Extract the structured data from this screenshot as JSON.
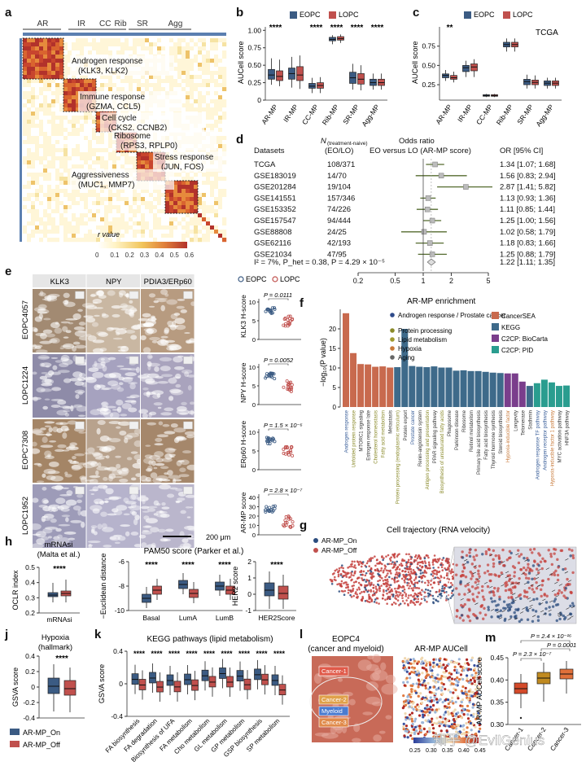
{
  "panel_letters": [
    "a",
    "b",
    "c",
    "d",
    "e",
    "f",
    "g",
    "h",
    "i",
    "j",
    "k",
    "l",
    "m"
  ],
  "colors": {
    "eopc": "#3b5b83",
    "lopc": "#c0504d",
    "heat_hi": "#b2322b",
    "heat_mid": "#e9a040",
    "heat_lo": "#fff8d8"
  },
  "panel_a": {
    "top_groups": [
      "AR",
      "IR",
      "CC",
      "Rib",
      "SR",
      "Agg"
    ],
    "modules": [
      {
        "name": "Androgen response",
        "genes": "(KLK3, KLK2)"
      },
      {
        "name": "Immune response",
        "genes": "(GZMA, CCL5)"
      },
      {
        "name": "Cell cycle",
        "genes": "(CKS2, CCNB2)"
      },
      {
        "name": "Ribosome",
        "genes": "(RPS3, RPLP0)"
      },
      {
        "name": "Stress response",
        "genes": "(JUN, FOS)"
      },
      {
        "name": "Aggressiveness",
        "genes": "(MUC1, MMP7)"
      }
    ],
    "legend_title": "r value",
    "legend_ticks": [
      "0",
      "0.1",
      "0.2",
      "0.3",
      "0.4",
      "0.5",
      "0.6"
    ]
  },
  "panel_b": {
    "ylabel": "AUCell score",
    "legend": [
      "EOPC",
      "LOPC"
    ],
    "yticks": [
      "0",
      "0.25",
      "0.50",
      "0.75",
      "1.00"
    ],
    "categories": [
      "AR-MP",
      "IR-MP",
      "CC-MP",
      "Rib-MP",
      "SR-MP",
      "Agg-MP"
    ],
    "sig": [
      "****",
      "",
      "****",
      "****",
      "****",
      "****"
    ]
  },
  "panel_c": {
    "ylabel": "AUCell score",
    "legend": [
      "EOPC",
      "LOPC"
    ],
    "tag": "TCGA",
    "yticks": [
      "0.25",
      "0.50",
      "0.75"
    ],
    "categories": [
      "AR-MP",
      "IR-MP",
      "CC-MP",
      "Rib-MP",
      "SR-MP",
      "Agg-MP"
    ],
    "sig": [
      "**",
      "",
      "",
      "",
      "",
      ""
    ]
  },
  "panel_d": {
    "col_datasets": "Datasets",
    "col_n": "N",
    "col_n_sub": "(treatment-naive)",
    "col_n2": "(EO/LO)",
    "col_or": "Odds ratio",
    "col_or2": "EO versus LO (AR-MP score)",
    "col_ci": "OR [95% CI]",
    "rows": [
      {
        "ds": "TCGA",
        "n": "108/371",
        "ci": "1.34 [1.07; 1.68]"
      },
      {
        "ds": "GSE183019",
        "n": "14/70",
        "ci": "1.56 [0.83; 2.94]"
      },
      {
        "ds": "GSE201284",
        "n": "19/104",
        "ci": "2.87 [1.41; 5.82]"
      },
      {
        "ds": "GSE141551",
        "n": "157/346",
        "ci": "1.13 [0.93; 1.36]"
      },
      {
        "ds": "GSE153352",
        "n": "74/226",
        "ci": "1.11 [0.85; 1.44]"
      },
      {
        "ds": "GSE157547",
        "n": "94/444",
        "ci": "1.25 [1.00; 1.56]"
      },
      {
        "ds": "GSE88808",
        "n": "24/25",
        "ci": "1.02 [0.58; 1.79]"
      },
      {
        "ds": "GSE62116",
        "n": "42/193",
        "ci": "1.18 [0.83; 1.66]"
      },
      {
        "ds": "GSE21034",
        "n": "47/95",
        "ci": "1.25 [0.88; 1.79]"
      }
    ],
    "summary_text": "I² = 7%, P_het = 0.38, P = 4.29 × 10⁻⁵",
    "summary_ci": "1.22 [1.11; 1.35]",
    "axis_ticks": [
      "0.2",
      "0.5",
      "1",
      "2",
      "5"
    ]
  },
  "panel_e": {
    "columns": [
      "KLK3",
      "NPY",
      "PDIA3/ERp60"
    ],
    "rows": [
      "EOPC4057",
      "LOPC1224",
      "EOPC7308",
      "LOPC1952"
    ],
    "legend": [
      "EOPC",
      "LOPC"
    ],
    "scale_bar": "200 μm",
    "scores": [
      {
        "ylabel": "KLK3 H-score",
        "p": "P = 0.0111",
        "yticks": [
          "0",
          "5",
          "10"
        ]
      },
      {
        "ylabel": "NPY H-score",
        "p": "P = 0.0052",
        "yticks": [
          "0",
          "5",
          "10"
        ]
      },
      {
        "ylabel": "ERp60 H-score",
        "p": "P = 1.5 × 10⁻⁶",
        "yticks": [
          "0",
          "5",
          "10"
        ]
      },
      {
        "ylabel": "AR-MP score",
        "p": "P = 2.8 × 10⁻⁷",
        "yticks": [
          "0",
          "10",
          "20",
          "30",
          "40"
        ]
      }
    ]
  },
  "panel_f": {
    "title": "AR-MP enrichment",
    "ylabel": "−log₁₀(P value)",
    "yticks": [
      "0",
      "5",
      "10",
      "15",
      "20"
    ],
    "legend_left": [
      "Androgen response / Prostate cancer",
      "Protein processing",
      "Lipid metabolism",
      "Hypoxia",
      "Aging"
    ],
    "legend_right": [
      "CancerSEA",
      "KEGG",
      "C2CP: BioCarta",
      "C2CP: PID"
    ],
    "terms": [
      "Androgen response",
      "Unfolded protein response",
      "MTORC1 signaling",
      "Estrogen response late",
      "Cholesterol homeostasis",
      "Fatty acid metabolism",
      "Metastasis",
      "Protein processing (endoplasmic reticulum)",
      "Protein export",
      "Prostate cancer",
      "Renin-angiotensin system",
      "Antigen processing and presentation",
      "PPAR signaling pathway",
      "Biosynthesis of unsaturated fatty acids",
      "Phagosome",
      "Parkinson disease",
      "Ribosome",
      "Retinol metabolism",
      "Primary bile acid biosynthesis",
      "Fatty acid biosynthesis",
      "Thyroid hormone synthesis",
      "Steroid biosynthesis",
      "Hypoxia-inducible factor",
      "Longevity",
      "Telomerase",
      "Stathmin",
      "Androgen response TF pathway",
      "Androgen receptor pathway",
      "Hypoxia-inducible factor 1 pathway",
      "MYC activation pathway",
      "HNF3A pathway"
    ]
  },
  "panel_g": {
    "title": "Cell trajectory (RNA velocity)",
    "legend": [
      "AR-MP_On",
      "AR-MP_Off"
    ]
  },
  "panel_h": {
    "title": "mRNAsi",
    "subtitle": "(Malta et al.)",
    "ylabel": "OCLR index",
    "sig": "****",
    "xlabel": "mRNAsi",
    "yticks": [
      "0.2",
      "0.3",
      "0.4",
      "0.5"
    ]
  },
  "panel_i": {
    "title": "PAM50 score (Parker et al.)",
    "ylabel": "−Euclidean distance",
    "categories": [
      "Basal",
      "LumA",
      "LumB"
    ],
    "yticks": [
      "-10",
      "-8",
      "-6"
    ],
    "sig": [
      "****",
      "****",
      "****"
    ],
    "her2_ylabel": "HER2 score",
    "her2_x": "HER2Score",
    "her2_sig": "****",
    "her2_yticks": [
      "-1",
      "0",
      "1",
      "2"
    ]
  },
  "panel_j": {
    "title": "Hypoxia",
    "subtitle": "(hallmark)",
    "ylabel": "GSVA score",
    "sig": "****",
    "yticks": [
      "-0.4",
      "-0.2",
      "0",
      "0.2",
      "0.4"
    ]
  },
  "panel_k": {
    "title": "KEGG pathways (lipid metabolism)",
    "ylabel": "GSVA score",
    "yticks": [
      "-0.4",
      "0",
      "0.4"
    ],
    "categories": [
      "FA biosynthesis",
      "FA degradation",
      "Biosynthesis of UFA",
      "FA metabolism",
      "Cho metabolism",
      "GL metabolism",
      "GP metabolism",
      "GSP biosynthesis",
      "SP metabolism"
    ]
  },
  "legend_onoff": [
    "AR-MP_On",
    "AR-MP_Off"
  ],
  "panel_l": {
    "left_title": "EOPC4",
    "left_sub": "(cancer and myeloid)",
    "right_title": "AR-MP AUCell",
    "regions": [
      "Cancer-1",
      "Cancer-2",
      "Myeloid",
      "Cancer-3"
    ],
    "scale_ticks": [
      "0.25",
      "0.30",
      "0.35",
      "0.40",
      "0.45"
    ]
  },
  "panel_m": {
    "ylabel": "AR-MP AUCell score",
    "yticks": [
      "0.30",
      "0.35",
      "0.40",
      "0.45"
    ],
    "categories": [
      "Cancer-1",
      "Cancer-2",
      "Cancer-3"
    ],
    "p_lines": [
      "P = 2.4 × 10⁻¹⁶",
      "P = 0.0001",
      "P = 2.3 × 10⁻⁷"
    ]
  },
  "watermark": "知乎 @EvilGenius"
}
